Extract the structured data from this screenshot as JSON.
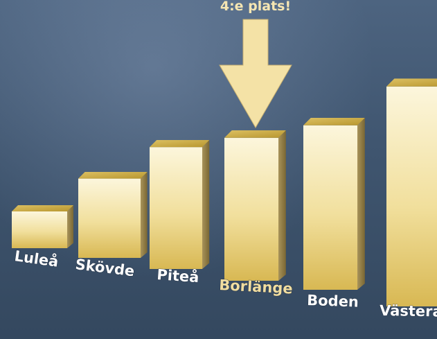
{
  "chart_data": {
    "type": "bar",
    "categories": [
      "Luleå",
      "Skövde",
      "Piteå",
      "Borlänge",
      "Boden",
      "Västera"
    ],
    "values": [
      1,
      2,
      3,
      3.5,
      4,
      5.3
    ],
    "highlight_index": 3,
    "annotation": "4:e plats!",
    "colors": {
      "bar_front_light": "#fbf3d2",
      "bar_front_dark": "#d9ba55",
      "bar_top": "#c9a83a",
      "bar_side": "#8f7a3e",
      "label": "#ffffff",
      "label_highlight": "#f0dda0",
      "arrow": "#f4e2a6"
    }
  }
}
